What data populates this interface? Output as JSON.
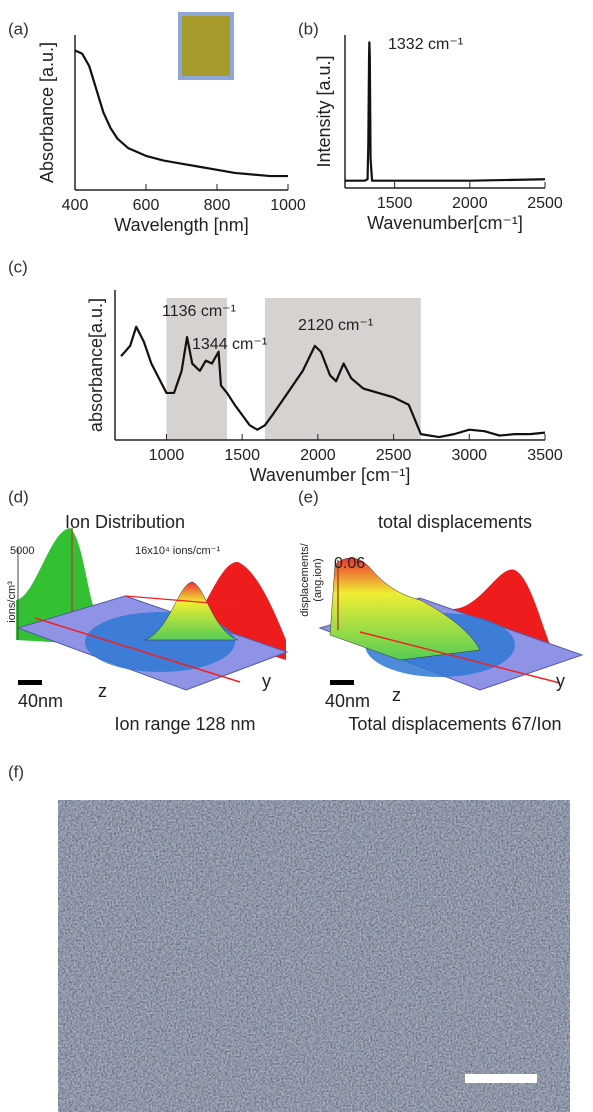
{
  "chart_data": [
    {
      "type": "line",
      "label": "(a)",
      "color": "#111",
      "x": [
        400,
        420,
        440,
        460,
        480,
        500,
        520,
        550,
        600,
        650,
        700,
        750,
        800,
        850,
        900,
        950,
        1000
      ],
      "values": [
        0.9,
        0.88,
        0.8,
        0.65,
        0.5,
        0.4,
        0.33,
        0.27,
        0.22,
        0.19,
        0.17,
        0.15,
        0.13,
        0.11,
        0.1,
        0.09,
        0.09
      ],
      "xlim": [
        400,
        1000
      ],
      "ylim": [
        0,
        1
      ],
      "xticks": [
        400,
        600,
        800,
        1000
      ],
      "xlabel": "Wavelength [nm]",
      "ylabel": "Absorbance [a.u.]"
    },
    {
      "type": "line",
      "label": "(b)",
      "color": "#111",
      "x": [
        1170,
        1300,
        1320,
        1325,
        1330,
        1332,
        1335,
        1340,
        1350,
        1500,
        2000,
        2500
      ],
      "values": [
        0.05,
        0.05,
        0.06,
        0.3,
        0.9,
        1.0,
        0.9,
        0.2,
        0.05,
        0.05,
        0.05,
        0.06
      ],
      "xlim": [
        1170,
        2500
      ],
      "ylim": [
        0,
        1.05
      ],
      "xticks": [
        1500,
        2000,
        2500
      ],
      "xlabel": "Wavenumber[cm⁻¹]",
      "ylabel": "Intensity [a.u.]",
      "annotations": [
        "1332 cm⁻¹"
      ]
    },
    {
      "type": "line",
      "label": "(c)",
      "color": "#111",
      "x": [
        700,
        760,
        800,
        850,
        900,
        950,
        1000,
        1050,
        1100,
        1136,
        1170,
        1220,
        1260,
        1300,
        1344,
        1360,
        1400,
        1450,
        1500,
        1550,
        1600,
        1650,
        1700,
        1800,
        1900,
        1980,
        2020,
        2080,
        2120,
        2170,
        2220,
        2300,
        2400,
        2500,
        2600,
        2680,
        2800,
        2900,
        3000,
        3100,
        3200,
        3300,
        3400,
        3500
      ],
      "values": [
        0.55,
        0.62,
        0.75,
        0.65,
        0.5,
        0.4,
        0.3,
        0.3,
        0.45,
        0.68,
        0.5,
        0.45,
        0.52,
        0.5,
        0.58,
        0.35,
        0.3,
        0.22,
        0.15,
        0.08,
        0.05,
        0.08,
        0.15,
        0.3,
        0.45,
        0.62,
        0.58,
        0.42,
        0.38,
        0.5,
        0.4,
        0.33,
        0.3,
        0.27,
        0.22,
        0.02,
        0.0,
        0.02,
        0.05,
        0.04,
        0.01,
        0.02,
        0.02,
        0.03
      ],
      "xlim": [
        660,
        3500
      ],
      "ylim": [
        -0.02,
        1
      ],
      "xticks": [
        1000,
        1500,
        2000,
        2500,
        3000,
        3500
      ],
      "bands": [
        [
          1000,
          1400
        ],
        [
          1650,
          2680
        ]
      ],
      "xlabel": "Wavenumber [cm⁻¹]",
      "ylabel": "absorbance[a.u.]",
      "annotations": [
        "1136 cm⁻¹",
        "1344 cm⁻¹",
        "2120 cm⁻¹"
      ]
    }
  ],
  "panel_d": {
    "label": "(d)",
    "title": "Ion Distribution",
    "tick": "5000",
    "note": "16x10⁴ ions/cm⁻¹",
    "y_label": "ions/cm³",
    "scale": "40nm",
    "z_axis": "z",
    "y_axis": "y",
    "caption": "Ion range 128 nm"
  },
  "panel_e": {
    "label": "(e)",
    "title": "total displacements",
    "tick": "0.06",
    "y_label": [
      "displacements/",
      "(ang.ion)"
    ],
    "scale": "40nm",
    "z_axis": "z",
    "y_axis": "y",
    "caption": "Total displacements 67/Ion"
  },
  "panel_f": {
    "label": "(f)"
  }
}
